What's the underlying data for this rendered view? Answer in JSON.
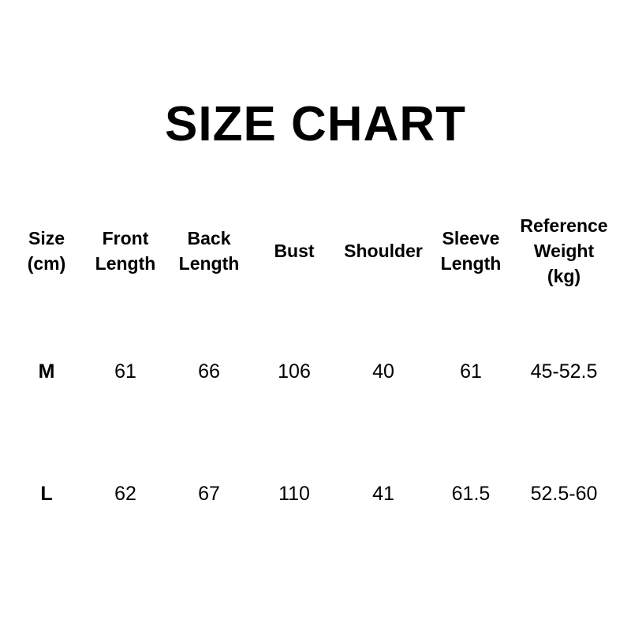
{
  "title": "SIZE CHART",
  "headers": [
    [
      "Size",
      "(cm)"
    ],
    [
      "Front",
      "Length"
    ],
    [
      "Back",
      "Length"
    ],
    [
      "Bust"
    ],
    [
      "Shoulder"
    ],
    [
      "Sleeve",
      "Length"
    ],
    [
      "Reference",
      "Weight",
      "(kg)"
    ]
  ],
  "rows": [
    [
      "M",
      "61",
      "66",
      "106",
      "40",
      "61",
      "45-52.5"
    ],
    [
      "L",
      "62",
      "67",
      "110",
      "41",
      "61.5",
      "52.5-60"
    ]
  ]
}
